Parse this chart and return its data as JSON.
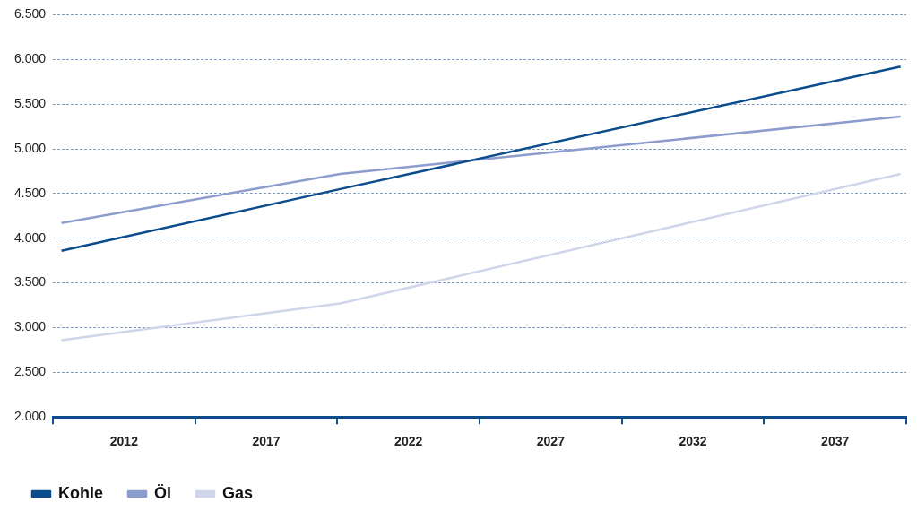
{
  "chart_data": {
    "type": "line",
    "xlim": [
      2009.5,
      2039.5
    ],
    "xticks": [
      {
        "value": 2009.5,
        "label": null
      },
      2012,
      {
        "value": 2014.5,
        "label": null
      },
      2017,
      {
        "value": 2019.5,
        "label": null
      },
      2022,
      {
        "value": 2024.5,
        "label": null
      },
      2027,
      {
        "value": 2029.5,
        "label": null
      },
      2032,
      {
        "value": 2034.5,
        "label": null
      },
      2037,
      {
        "value": 2039.5,
        "label": null
      }
    ],
    "ylim": [
      2000,
      6500
    ],
    "yticks": [
      {
        "value": 2000,
        "label": "2.000"
      },
      {
        "value": 2500,
        "label": "2.500"
      },
      {
        "value": 3000,
        "label": "3.000"
      },
      {
        "value": 3500,
        "label": "3.500"
      },
      {
        "value": 4000,
        "label": "4.000"
      },
      {
        "value": 4500,
        "label": "4.500"
      },
      {
        "value": 5000,
        "label": "5.000"
      },
      {
        "value": 5500,
        "label": "5.500"
      },
      {
        "value": 6000,
        "label": "6.000"
      },
      {
        "value": 6500,
        "label": "6.500"
      }
    ],
    "x": [
      2009.8,
      2019.6,
      2039.3
    ],
    "series": [
      {
        "name": "Kohle",
        "color": "#0b4c8c",
        "values": [
          3860,
          4550,
          5920
        ]
      },
      {
        "name": "Öl",
        "color": "#8c9ccc",
        "values": [
          4170,
          4720,
          5360
        ]
      },
      {
        "name": "Gas",
        "color": "#d0d6ea",
        "values": [
          2860,
          3270,
          4720
        ]
      }
    ],
    "grid": "y",
    "legend": "bottom left",
    "marker": "none",
    "line_style": "solid"
  }
}
